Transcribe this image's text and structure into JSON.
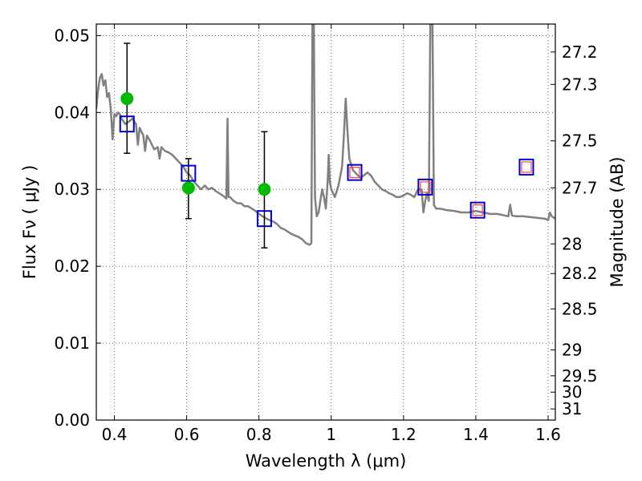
{
  "chart_data": {
    "type": "scatter",
    "xlabel": "Wavelength  λ (μm)",
    "ylabel": "Flux  Fν  ( μJy )",
    "ylabel_right": "Magnitude (AB)",
    "xlim": [
      0.35,
      1.62
    ],
    "ylim": [
      0.0,
      0.0515
    ],
    "x_ticks": [
      0.4,
      0.6,
      0.8,
      1.0,
      1.2,
      1.4,
      1.6
    ],
    "x_tick_labels": [
      "0.4",
      "0.6",
      "0.8",
      "1",
      "1.2",
      "1.4",
      "1.6"
    ],
    "y_ticks": [
      0.0,
      0.01,
      0.02,
      0.03,
      0.04,
      0.05
    ],
    "y_tick_labels": [
      "0.00",
      "0.01",
      "0.02",
      "0.03",
      "0.04",
      "0.05"
    ],
    "right_ticks": [
      {
        "label": "27.2",
        "mag": 27.2
      },
      {
        "label": "27.3",
        "mag": 27.3
      },
      {
        "label": "27.5",
        "mag": 27.5
      },
      {
        "label": "27.7",
        "mag": 27.7
      },
      {
        "label": "28",
        "mag": 28.0
      },
      {
        "label": "28.2",
        "mag": 28.2
      },
      {
        "label": "28.5",
        "mag": 28.5
      },
      {
        "label": "29",
        "mag": 29.0
      },
      {
        "label": "29.5",
        "mag": 29.5
      },
      {
        "label": "30",
        "mag": 30.0
      },
      {
        "label": "31",
        "mag": 31.0
      }
    ],
    "grid": true,
    "colors": {
      "spectrum": "#808080",
      "observed": "#00bb00",
      "model_box": "#0000cc",
      "inner_box": "#ff4040",
      "errorbar": "#000000"
    },
    "series": [
      {
        "kind": "line",
        "points": [
          [
            0.35,
            0.0405
          ],
          [
            0.355,
            0.043
          ],
          [
            0.36,
            0.0445
          ],
          [
            0.365,
            0.045
          ],
          [
            0.37,
            0.0435
          ],
          [
            0.375,
            0.0442
          ],
          [
            0.38,
            0.042
          ],
          [
            0.385,
            0.0425
          ],
          [
            0.39,
            0.0405
          ],
          [
            0.395,
            0.0365
          ],
          [
            0.4,
            0.0398
          ],
          [
            0.405,
            0.0395
          ],
          [
            0.41,
            0.04
          ],
          [
            0.415,
            0.0398
          ],
          [
            0.42,
            0.0392
          ],
          [
            0.43,
            0.0385
          ],
          [
            0.44,
            0.0388
          ],
          [
            0.45,
            0.0392
          ],
          [
            0.46,
            0.0385
          ],
          [
            0.465,
            0.0358
          ],
          [
            0.47,
            0.038
          ],
          [
            0.48,
            0.037
          ],
          [
            0.485,
            0.035
          ],
          [
            0.49,
            0.037
          ],
          [
            0.5,
            0.0362
          ],
          [
            0.51,
            0.0352
          ],
          [
            0.52,
            0.0355
          ],
          [
            0.525,
            0.034
          ],
          [
            0.53,
            0.0355
          ],
          [
            0.54,
            0.035
          ],
          [
            0.55,
            0.0348
          ],
          [
            0.56,
            0.0345
          ],
          [
            0.57,
            0.034
          ],
          [
            0.58,
            0.0335
          ],
          [
            0.59,
            0.033
          ],
          [
            0.6,
            0.0322
          ],
          [
            0.61,
            0.0318
          ],
          [
            0.62,
            0.031
          ],
          [
            0.63,
            0.0305
          ],
          [
            0.64,
            0.03
          ],
          [
            0.65,
            0.0305
          ],
          [
            0.66,
            0.03
          ],
          [
            0.67,
            0.0302
          ],
          [
            0.68,
            0.0298
          ],
          [
            0.69,
            0.0295
          ],
          [
            0.7,
            0.0292
          ],
          [
            0.705,
            0.029
          ],
          [
            0.71,
            0.0288
          ],
          [
            0.713,
            0.0392
          ],
          [
            0.716,
            0.029
          ],
          [
            0.72,
            0.029
          ],
          [
            0.73,
            0.0285
          ],
          [
            0.74,
            0.0282
          ],
          [
            0.75,
            0.0282
          ],
          [
            0.76,
            0.0278
          ],
          [
            0.77,
            0.0278
          ],
          [
            0.78,
            0.0275
          ],
          [
            0.79,
            0.0272
          ],
          [
            0.8,
            0.0268
          ],
          [
            0.81,
            0.0265
          ],
          [
            0.82,
            0.0262
          ],
          [
            0.83,
            0.026
          ],
          [
            0.84,
            0.0258
          ],
          [
            0.85,
            0.0255
          ],
          [
            0.86,
            0.025
          ],
          [
            0.87,
            0.0248
          ],
          [
            0.88,
            0.0245
          ],
          [
            0.89,
            0.0242
          ],
          [
            0.9,
            0.024
          ],
          [
            0.91,
            0.0238
          ],
          [
            0.92,
            0.0235
          ],
          [
            0.93,
            0.023
          ],
          [
            0.94,
            0.0228
          ],
          [
            0.945,
            0.023
          ],
          [
            0.948,
            0.0515
          ],
          [
            0.952,
            0.0515
          ],
          [
            0.955,
            0.029
          ],
          [
            0.96,
            0.0265
          ],
          [
            0.965,
            0.027
          ],
          [
            0.97,
            0.0285
          ],
          [
            0.975,
            0.03
          ],
          [
            0.98,
            0.029
          ],
          [
            0.985,
            0.0275
          ],
          [
            0.99,
            0.031
          ],
          [
            0.993,
            0.0345
          ],
          [
            0.996,
            0.031
          ],
          [
            1.0,
            0.03
          ],
          [
            1.005,
            0.0295
          ],
          [
            1.01,
            0.029
          ],
          [
            1.02,
            0.0305
          ],
          [
            1.03,
            0.033
          ],
          [
            1.035,
            0.037
          ],
          [
            1.04,
            0.0418
          ],
          [
            1.045,
            0.0375
          ],
          [
            1.05,
            0.034
          ],
          [
            1.06,
            0.0325
          ],
          [
            1.07,
            0.032
          ],
          [
            1.08,
            0.0315
          ],
          [
            1.09,
            0.0318
          ],
          [
            1.1,
            0.0322
          ],
          [
            1.11,
            0.0318
          ],
          [
            1.12,
            0.031
          ],
          [
            1.13,
            0.0305
          ],
          [
            1.14,
            0.03
          ],
          [
            1.15,
            0.0298
          ],
          [
            1.16,
            0.0295
          ],
          [
            1.17,
            0.0293
          ],
          [
            1.18,
            0.029
          ],
          [
            1.19,
            0.029
          ],
          [
            1.2,
            0.0292
          ],
          [
            1.21,
            0.0295
          ],
          [
            1.22,
            0.0293
          ],
          [
            1.23,
            0.029
          ],
          [
            1.24,
            0.03
          ],
          [
            1.25,
            0.03
          ],
          [
            1.255,
            0.027
          ],
          [
            1.26,
            0.0285
          ],
          [
            1.265,
            0.0295
          ],
          [
            1.27,
            0.0285
          ],
          [
            1.274,
            0.0515
          ],
          [
            1.28,
            0.0515
          ],
          [
            1.284,
            0.028
          ],
          [
            1.29,
            0.0275
          ],
          [
            1.3,
            0.0275
          ],
          [
            1.32,
            0.0273
          ],
          [
            1.34,
            0.0272
          ],
          [
            1.36,
            0.027
          ],
          [
            1.38,
            0.027
          ],
          [
            1.4,
            0.0272
          ],
          [
            1.42,
            0.027
          ],
          [
            1.44,
            0.0268
          ],
          [
            1.46,
            0.0268
          ],
          [
            1.48,
            0.0266
          ],
          [
            1.49,
            0.0265
          ],
          [
            1.495,
            0.028
          ],
          [
            1.5,
            0.0266
          ],
          [
            1.51,
            0.0265
          ],
          [
            1.53,
            0.0265
          ],
          [
            1.55,
            0.0264
          ],
          [
            1.57,
            0.0263
          ],
          [
            1.59,
            0.0262
          ],
          [
            1.6,
            0.026
          ],
          [
            1.605,
            0.027
          ],
          [
            1.61,
            0.0265
          ],
          [
            1.62,
            0.0262
          ]
        ]
      },
      {
        "kind": "errorbar",
        "points": [
          {
            "x": 0.435,
            "low": 0.0347,
            "high": 0.049
          },
          {
            "x": 0.605,
            "low": 0.0262,
            "high": 0.034
          },
          {
            "x": 0.815,
            "low": 0.0224,
            "high": 0.0375
          }
        ]
      },
      {
        "kind": "observed_points",
        "points": [
          {
            "x": 0.435,
            "y": 0.0418
          },
          {
            "x": 0.605,
            "y": 0.0302
          },
          {
            "x": 0.815,
            "y": 0.03
          }
        ]
      },
      {
        "kind": "model_boxes",
        "points": [
          {
            "x": 0.435,
            "y": 0.0385
          },
          {
            "x": 0.605,
            "y": 0.0321
          },
          {
            "x": 0.815,
            "y": 0.0262
          },
          {
            "x": 1.065,
            "y": 0.0322
          },
          {
            "x": 1.26,
            "y": 0.0303
          },
          {
            "x": 1.405,
            "y": 0.0273
          },
          {
            "x": 1.54,
            "y": 0.0329
          }
        ]
      },
      {
        "kind": "inner_boxes",
        "points": [
          {
            "x": 1.065,
            "y": 0.0322
          },
          {
            "x": 1.26,
            "y": 0.0303
          },
          {
            "x": 1.405,
            "y": 0.0273
          },
          {
            "x": 1.54,
            "y": 0.0329
          }
        ]
      }
    ]
  }
}
